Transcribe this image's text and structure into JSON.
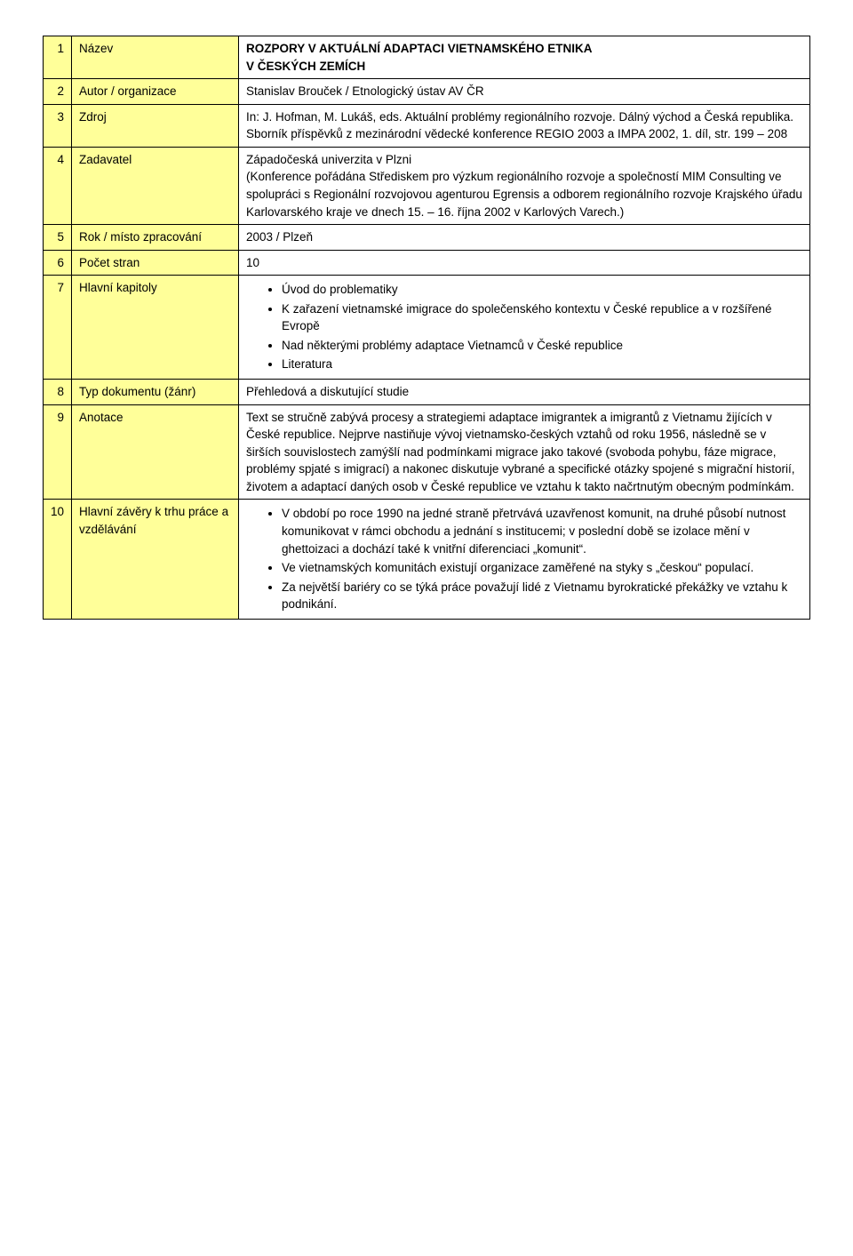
{
  "rows": [
    {
      "n": "1",
      "label": "Název",
      "title1": "ROZPORY V AKTUÁLNÍ ADAPTACI VIETNAMSKÉHO ETNIKA",
      "title2": "V ČESKÝCH ZEMÍCH"
    },
    {
      "n": "2",
      "label": "Autor / organizace",
      "text": "Stanislav Brouček / Etnologický ústav AV ČR"
    },
    {
      "n": "3",
      "label": "Zdroj",
      "text": "In: J. Hofman, M. Lukáš, eds. Aktuální problémy regionálního rozvoje. Dálný východ a Česká republika. Sborník příspěvků z mezinárodní vědecké konference REGIO 2003 a IMPA 2002, 1. díl, str. 199 – 208"
    },
    {
      "n": "4",
      "label": "Zadavatel",
      "text": "Západočeská univerzita v Plzni\n(Konference pořádána Střediskem pro výzkum regionálního rozvoje a společností MIM Consulting ve spolupráci s Regionální rozvojovou agenturou Egrensis a odborem regionálního rozvoje Krajského úřadu Karlovarského kraje ve dnech 15. – 16. října 2002 v Karlových Varech.)"
    },
    {
      "n": "5",
      "label": "Rok / místo zpracování",
      "text": "2003 / Plzeň"
    },
    {
      "n": "6",
      "label": "Počet stran",
      "text": "10"
    },
    {
      "n": "7",
      "label": "Hlavní kapitoly",
      "bullets": [
        {
          "text": "Úvod do problematiky"
        },
        {
          "text": "K zařazení vietnamské imigrace do společenského kontextu v České republice a v rozšířené Evropě"
        },
        {
          "text": "Nad některými problémy adaptace Vietnamců v České republice"
        },
        {
          "text": "Literatura"
        }
      ]
    },
    {
      "n": "8",
      "label": "Typ dokumentu (žánr)",
      "text": "Přehledová a diskutující studie"
    },
    {
      "n": "9",
      "label": "Anotace",
      "text": "Text se stručně zabývá procesy a strategiemi adaptace imigrantek a imigrantů z Vietnamu žijících v České republice. Nejprve nastiňuje vývoj vietnamsko-českých vztahů od roku 1956, následně se v širších souvislostech zamýšlí nad podmínkami migrace jako takové (svoboda pohybu, fáze migrace, problémy spjaté s imigrací) a nakonec diskutuje vybrané a specifické otázky spojené s migrační historií, životem a adaptací daných osob v České republice ve vztahu k takto načrtnutým obecným podmínkám."
    },
    {
      "n": "10",
      "label": "Hlavní závěry k trhu práce a vzdělávání",
      "bullets": [
        {
          "text": "V období po roce 1990 na jedné straně přetrvává uzavřenost komunit, na druhé působí nutnost komunikovat v rámci obchodu a jednání s institucemi; v poslední době se izolace mění v ghettoizaci a dochází také k vnitřní diferenciaci „komunit“."
        },
        {
          "text": "Ve vietnamských komunitách existují organizace zaměřené na styky s „českou“ populací."
        },
        {
          "text": "Za největší bariéry co se týká práce považují lidé z Vietnamu byrokratické překážky ve vztahu k podnikání."
        }
      ]
    }
  ]
}
